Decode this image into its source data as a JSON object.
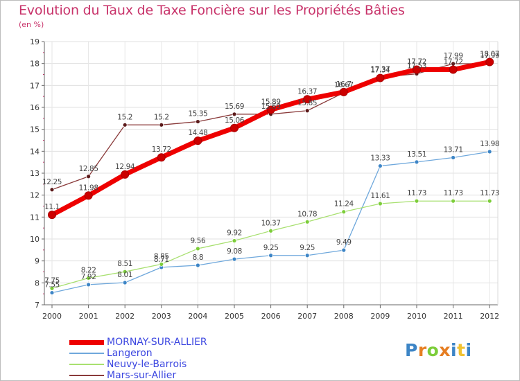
{
  "chart_data": {
    "type": "line",
    "title": "Evolution du Taux de Taxe Foncière sur les Propriétés Bâties",
    "ylabel": "(en %)",
    "xlabel": "",
    "categories": [
      "2000",
      "2001",
      "2002",
      "2003",
      "2004",
      "2005",
      "2006",
      "2007",
      "2008",
      "2009",
      "2010",
      "2011",
      "2012"
    ],
    "y_ticks": [
      "7",
      "8",
      "9",
      "10",
      "11",
      "12",
      "13",
      "14",
      "15",
      "16",
      "17",
      "18",
      "19"
    ],
    "ylim": [
      7,
      19
    ],
    "grid": true,
    "series": [
      {
        "name": "MORNAY-SUR-ALLIER",
        "color": "#ee0000",
        "marker": "#cc0000",
        "values": [
          11.1,
          11.98,
          12.94,
          13.72,
          14.48,
          15.06,
          15.89,
          16.37,
          16.7,
          17.34,
          17.72,
          17.72,
          18.07
        ],
        "labels": [
          "11.1",
          "11.98",
          "12.94",
          "13.72",
          "14.48",
          "15.06",
          "15.89",
          "16.37",
          "16.7",
          "17.34",
          "17.72",
          "17.72",
          "18.07"
        ]
      },
      {
        "name": "Langeron",
        "color": "#6fa8dc",
        "marker": "#3d85c6",
        "values": [
          7.55,
          7.92,
          8.01,
          8.71,
          8.8,
          9.08,
          9.25,
          9.25,
          9.49,
          13.33,
          13.51,
          13.71,
          13.98
        ],
        "labels": [
          "7.55",
          "7.92",
          "8.01",
          "8.71",
          "8.8",
          "9.08",
          "9.25",
          "9.25",
          "9.49",
          "13.33",
          "13.51",
          "13.71",
          "13.98"
        ]
      },
      {
        "name": "Neuvy-le-Barrois",
        "color": "#a8e070",
        "marker": "#7ccd3a",
        "values": [
          7.75,
          8.22,
          8.51,
          8.85,
          9.56,
          9.92,
          10.37,
          10.78,
          11.24,
          11.61,
          11.73,
          11.73,
          11.73
        ],
        "labels": [
          "7.75",
          "8.22",
          "8.51",
          "8.85",
          "9.56",
          "9.92",
          "10.37",
          "10.78",
          "11.24",
          "11.61",
          "11.73",
          "11.73",
          "11.73"
        ]
      },
      {
        "name": "Mars-sur-Allier",
        "color": "#8a3a3a",
        "marker": "#5c1a1a",
        "values": [
          12.25,
          12.85,
          15.2,
          15.2,
          15.35,
          15.69,
          15.69,
          15.85,
          16.67,
          17.37,
          17.53,
          17.99,
          17.99
        ],
        "labels": [
          "12.25",
          "12.85",
          "15.2",
          "15.2",
          "15.35",
          "15.69",
          "15.69",
          "15.85",
          "16.67",
          "17.37",
          "17.53",
          "17.99",
          "17.99"
        ]
      }
    ]
  },
  "legend": {
    "items": [
      "MORNAY-SUR-ALLIER",
      "Langeron",
      "Neuvy-le-Barrois",
      "Mars-sur-Allier"
    ]
  },
  "logo": {
    "letters": [
      "P",
      "r",
      "o",
      "x",
      "i",
      "t",
      "i"
    ],
    "colors": [
      "#3d85c6",
      "#e67e22",
      "#7ccd3a",
      "#e67e22",
      "#3d85c6",
      "#f1c232",
      "#3d85c6"
    ]
  }
}
